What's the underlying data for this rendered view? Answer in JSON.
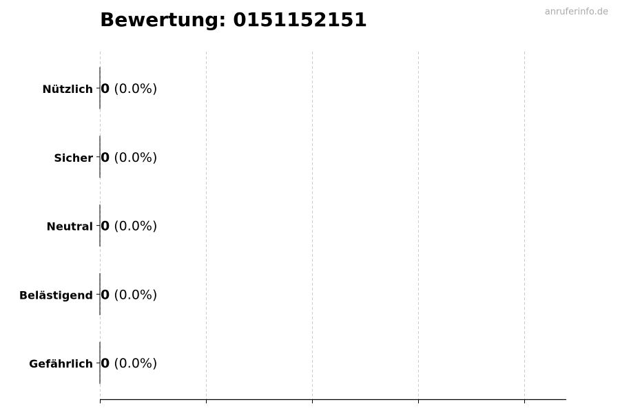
{
  "watermark": "anruferinfo.de",
  "chart_data": {
    "type": "bar",
    "orientation": "horizontal",
    "title": "Bewertung: 0151152151",
    "categories": [
      "Nützlich",
      "Sicher",
      "Neutral",
      "Belästigend",
      "Gefährlich"
    ],
    "values": [
      0,
      0,
      0,
      0,
      0
    ],
    "percent_labels": [
      "(0.0%)",
      "(0.0%)",
      "(0.0%)",
      "(0.0%)",
      "(0.0%)"
    ],
    "xlabel": "",
    "ylabel": "",
    "x_gridlines": 5,
    "grid": true,
    "grid_style": "dashed vertical",
    "bar_edge_color": "#000000",
    "grid_color": "#cccccc"
  }
}
